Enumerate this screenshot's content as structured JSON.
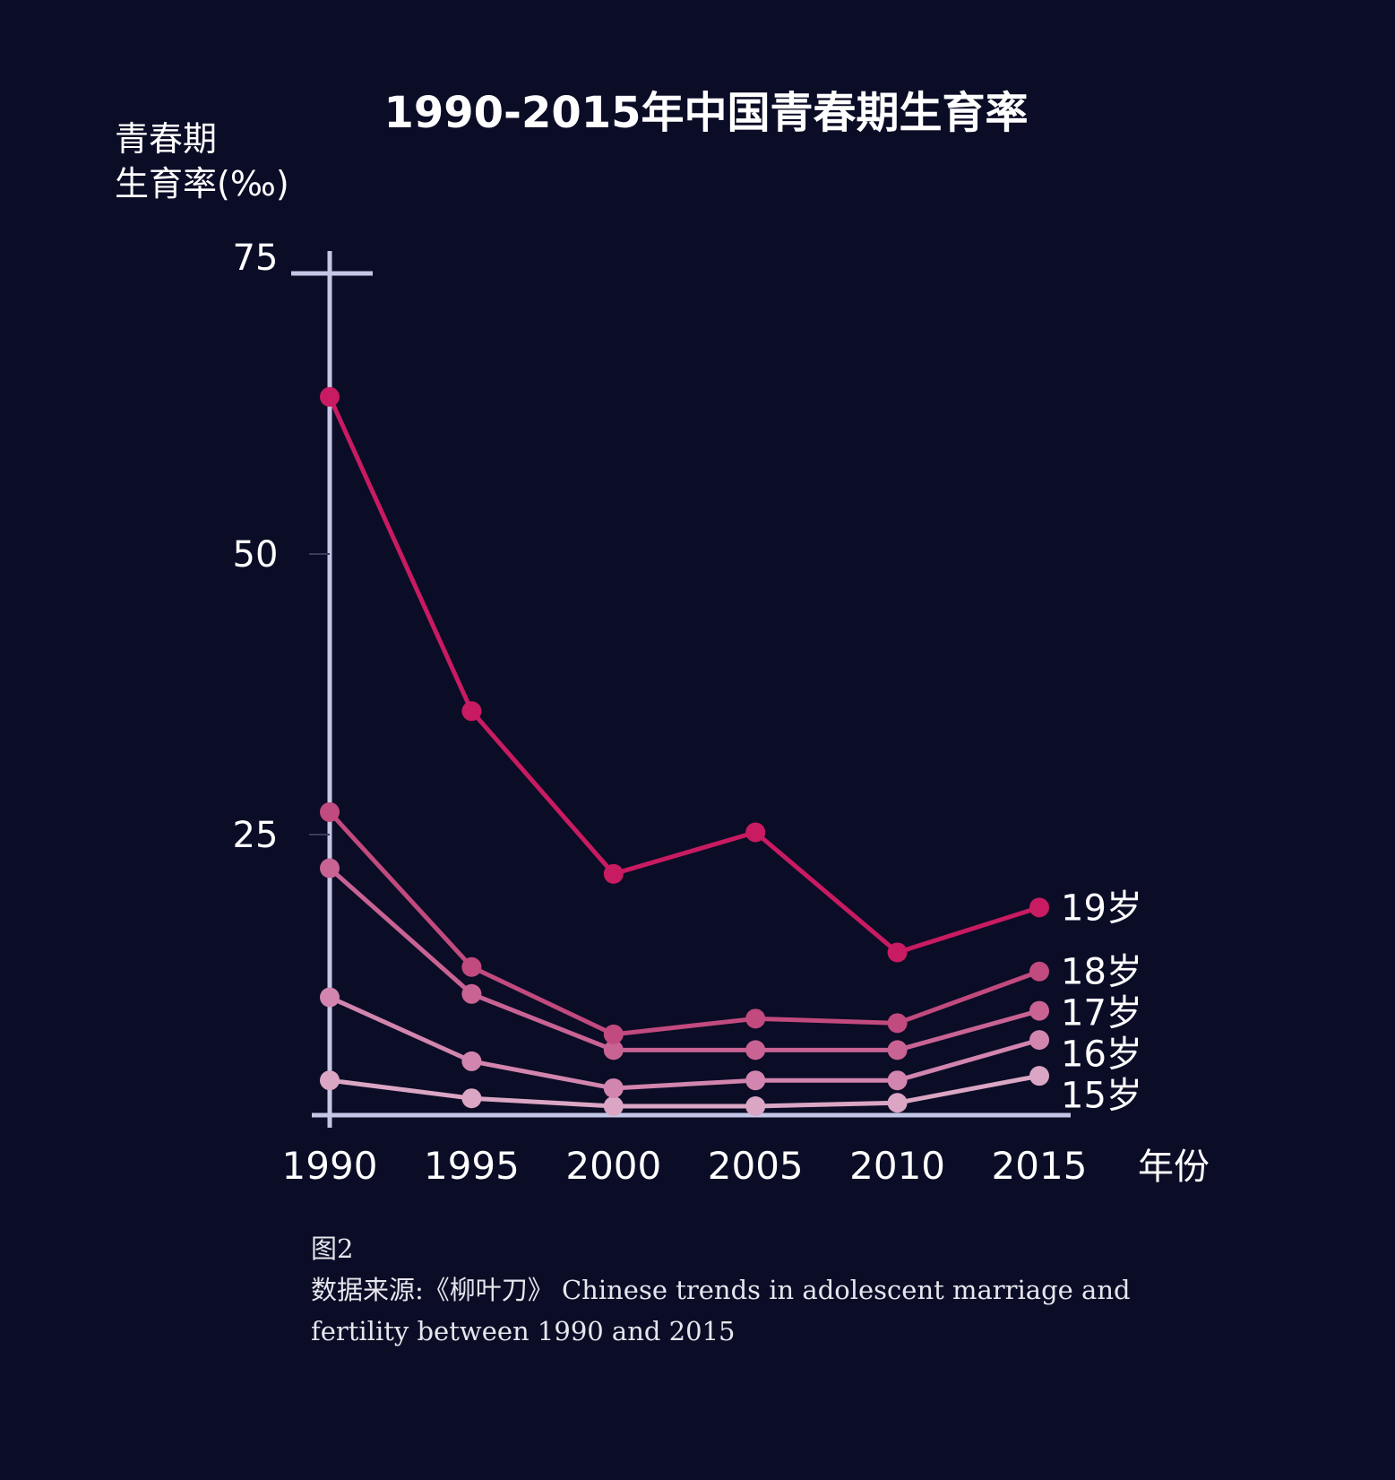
{
  "chart_data": {
    "type": "line",
    "title": "1990-2015年中国青春期生育率",
    "ylabel_line1": "青春期",
    "ylabel_line2": "生育率(‰)",
    "xlabel": "年份",
    "x": [
      1990,
      1995,
      2000,
      2005,
      2010,
      2015
    ],
    "x_tick_labels": [
      "1990",
      "1995",
      "2000",
      "2005",
      "2010",
      "2015"
    ],
    "ylim": [
      0,
      75
    ],
    "y_ticks": [
      25,
      50,
      75
    ],
    "y_tick_labels": [
      "25",
      "50",
      "75"
    ],
    "grid": false,
    "legend": "inline at line ends",
    "series": [
      {
        "name": "19岁",
        "color": "#c81b62",
        "values": [
          64,
          36,
          21.5,
          25.2,
          14.5,
          18.5
        ]
      },
      {
        "name": "18岁",
        "color": "#c14a7e",
        "values": [
          27,
          13.2,
          7.2,
          8.6,
          8.2,
          12.8
        ]
      },
      {
        "name": "17岁",
        "color": "#c86394",
        "values": [
          22,
          10.8,
          5.8,
          5.8,
          5.8,
          9.3
        ]
      },
      {
        "name": "16岁",
        "color": "#d285ae",
        "values": [
          10.5,
          4.8,
          2.4,
          3.1,
          3.1,
          6.7
        ]
      },
      {
        "name": "15岁",
        "color": "#dba6c4",
        "values": [
          3.1,
          1.5,
          0.8,
          0.8,
          1.1,
          3.5
        ]
      }
    ],
    "colors": {
      "background": "#0b0c26",
      "axis": "#c3c6e4",
      "text": "#ffffff"
    }
  },
  "caption": {
    "figure_label": "图2",
    "source": "数据来源:《柳叶刀》 Chinese trends in adolescent marriage and fertility between 1990 and 2015"
  }
}
